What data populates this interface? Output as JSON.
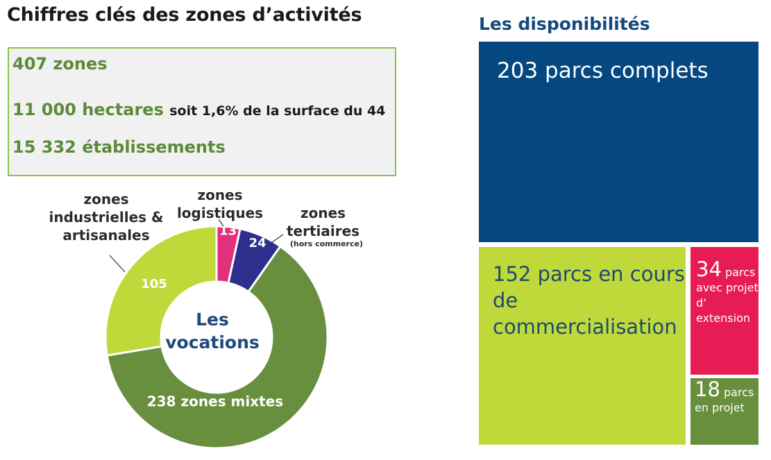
{
  "page_title": "Chiffres clés des zones d’activités",
  "key_figures": [
    {
      "value": "407 zones",
      "suffix": ""
    },
    {
      "value": "11 000 hectares",
      "suffix": "soit 1,6% de la surface du 44"
    },
    {
      "value": "15 332 établissements",
      "suffix": ""
    }
  ],
  "colors": {
    "green_text": "#5b8a38",
    "box_border": "#8bc34a",
    "navy": "#044781",
    "lime": "#c0d93a",
    "pink": "#e81c54",
    "olive_green": "#688f3d",
    "indigo": "#2e2e8f",
    "center_text": "#1e4a7a"
  },
  "chart_data": [
    {
      "type": "pie",
      "variant": "donut",
      "center_label": "Les vocations",
      "series": [
        {
          "name": "zones logistiques",
          "value": 13,
          "value_label": "13",
          "color": "#e0327a"
        },
        {
          "name": "zones tertiaires",
          "value": 24,
          "value_label": "24",
          "note": "(hors commerce)",
          "color": "#2e2e8f"
        },
        {
          "name": "zones mixtes",
          "value": 238,
          "value_label": "238 zones mixtes",
          "color": "#688f3d"
        },
        {
          "name": "zones industrielles & artisanales",
          "value": 105,
          "value_label": "105",
          "color": "#c0d93a"
        }
      ]
    },
    {
      "type": "treemap",
      "title": "Les disponibilités",
      "series": [
        {
          "value": 203,
          "label_number": "203",
          "label_text": "parcs complets",
          "color": "#044781"
        },
        {
          "value": 152,
          "label_number": "152",
          "label_text": "parcs en cours de commercialisation",
          "color": "#c0d93a"
        },
        {
          "value": 34,
          "label_number": "34",
          "label_text": "parcs avec projet d‘ extension",
          "color": "#e81c54"
        },
        {
          "value": 18,
          "label_number": "18",
          "label_text": "parcs en projet",
          "color": "#688f3d"
        }
      ]
    }
  ]
}
